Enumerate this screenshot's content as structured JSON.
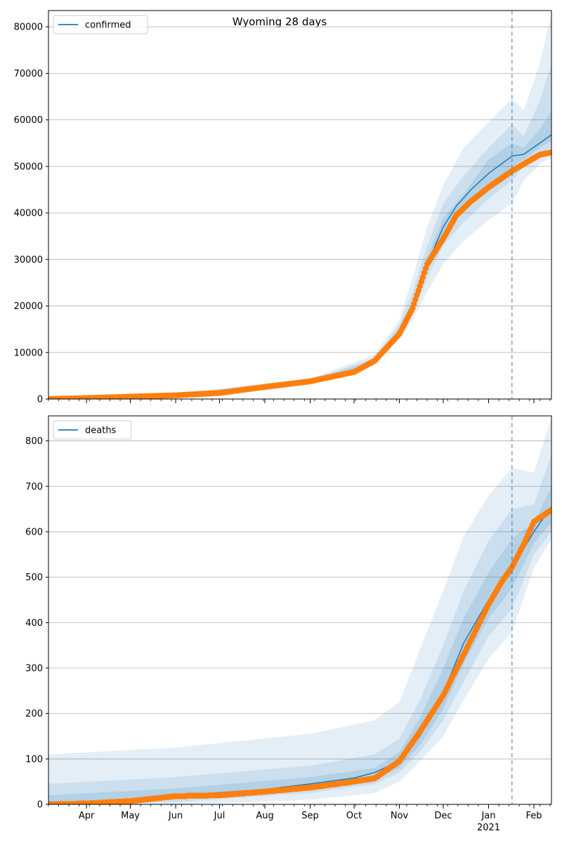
{
  "figure": {
    "title": "Wyoming 28 days"
  },
  "colors": {
    "model": "#1f77b4",
    "observed": "#ff7f0e",
    "grid": "#b0b0b0",
    "forecast_marker": "#1f77b4"
  },
  "chart_data": [
    {
      "type": "line",
      "title": "Wyoming 28 days",
      "legend": [
        "confirmed"
      ],
      "legend_position": "top-left",
      "grid": "horizontal",
      "xlabel": "",
      "ylabel": "",
      "xlim": [
        "2020-03-06",
        "2021-02-13"
      ],
      "ylim": [
        0,
        83500
      ],
      "yticks": [
        0,
        10000,
        20000,
        30000,
        40000,
        50000,
        60000,
        70000,
        80000
      ],
      "xticks": [
        {
          "date": "2020-04-01",
          "label": "Apr"
        },
        {
          "date": "2020-05-01",
          "label": "May"
        },
        {
          "date": "2020-06-01",
          "label": "Jun"
        },
        {
          "date": "2020-07-01",
          "label": "Jul"
        },
        {
          "date": "2020-08-01",
          "label": "Aug"
        },
        {
          "date": "2020-09-01",
          "label": "Sep"
        },
        {
          "date": "2020-10-01",
          "label": "Oct"
        },
        {
          "date": "2020-11-01",
          "label": "Nov"
        },
        {
          "date": "2020-12-01",
          "label": "Dec"
        },
        {
          "date": "2021-01-01",
          "label": "Jan",
          "sublabel": "2021"
        },
        {
          "date": "2021-02-01",
          "label": "Feb"
        }
      ],
      "forecast_start": "2021-01-17",
      "series": [
        {
          "name": "confirmed",
          "kind": "model-median",
          "x": [
            "2020-03-06",
            "2020-04-01",
            "2020-05-01",
            "2020-06-01",
            "2020-07-01",
            "2020-08-01",
            "2020-09-01",
            "2020-10-01",
            "2020-10-15",
            "2020-11-01",
            "2020-11-10",
            "2020-11-20",
            "2020-12-01",
            "2020-12-10",
            "2020-12-20",
            "2021-01-01",
            "2021-01-17",
            "2021-01-25",
            "2021-02-05",
            "2021-02-13"
          ],
          "y": [
            0,
            250,
            600,
            900,
            1400,
            2700,
            3900,
            5800,
            8000,
            14500,
            20000,
            29000,
            37000,
            41500,
            45000,
            48500,
            52200,
            52600,
            55000,
            56800
          ]
        },
        {
          "name": "observed",
          "kind": "observed-points",
          "x": [
            "2020-03-06",
            "2020-04-01",
            "2020-05-01",
            "2020-06-01",
            "2020-07-01",
            "2020-08-01",
            "2020-09-01",
            "2020-10-01",
            "2020-10-15",
            "2020-11-01",
            "2020-11-10",
            "2020-11-20",
            "2020-12-01",
            "2020-12-10",
            "2020-12-20",
            "2021-01-01",
            "2021-01-17",
            "2021-01-25",
            "2021-02-05",
            "2021-02-13"
          ],
          "y": [
            0,
            200,
            500,
            800,
            1300,
            2600,
            3800,
            5800,
            8200,
            14000,
            19500,
            29000,
            34500,
            39500,
            42500,
            45500,
            49000,
            50500,
            52500,
            53000
          ]
        }
      ],
      "bands": {
        "x": [
          "2020-03-06",
          "2020-06-01",
          "2020-09-01",
          "2020-10-15",
          "2020-11-01",
          "2020-11-10",
          "2020-11-20",
          "2020-12-01",
          "2020-12-15",
          "2021-01-01",
          "2021-01-17",
          "2021-01-25",
          "2021-02-05",
          "2021-02-13"
        ],
        "outer_low": [
          0,
          700,
          3600,
          7200,
          13000,
          17000,
          23000,
          29000,
          34000,
          38500,
          42000,
          47000,
          50500,
          52000
        ],
        "outer_high": [
          0,
          1200,
          4400,
          9500,
          17000,
          26000,
          37000,
          46000,
          54000,
          59500,
          64500,
          62000,
          72000,
          83000
        ],
        "mid_low": [
          0,
          800,
          3700,
          7600,
          13600,
          18500,
          26000,
          33000,
          38000,
          43000,
          47000,
          50000,
          52500,
          54000
        ],
        "mid_high": [
          0,
          1050,
          4200,
          8800,
          16000,
          23000,
          33000,
          42000,
          48000,
          54000,
          59000,
          56500,
          64000,
          72000
        ],
        "inner_low": [
          0,
          850,
          3800,
          7800,
          14000,
          19200,
          27500,
          35000,
          40500,
          45500,
          50000,
          51500,
          54000,
          55500
        ],
        "inner_high": [
          0,
          980,
          4000,
          8300,
          15200,
          21000,
          30500,
          39000,
          44000,
          51500,
          55000,
          54000,
          58000,
          62000
        ]
      }
    },
    {
      "type": "line",
      "title": "",
      "legend": [
        "deaths"
      ],
      "legend_position": "top-left",
      "grid": "horizontal",
      "xlabel": "",
      "ylabel": "",
      "xlim": [
        "2020-03-06",
        "2021-02-13"
      ],
      "ylim": [
        0,
        855
      ],
      "yticks": [
        0,
        100,
        200,
        300,
        400,
        500,
        600,
        700,
        800
      ],
      "xticks": [
        {
          "date": "2020-04-01",
          "label": "Apr"
        },
        {
          "date": "2020-05-01",
          "label": "May"
        },
        {
          "date": "2020-06-01",
          "label": "Jun"
        },
        {
          "date": "2020-07-01",
          "label": "Jul"
        },
        {
          "date": "2020-08-01",
          "label": "Aug"
        },
        {
          "date": "2020-09-01",
          "label": "Sep"
        },
        {
          "date": "2020-10-01",
          "label": "Oct"
        },
        {
          "date": "2020-11-01",
          "label": "Nov"
        },
        {
          "date": "2020-12-01",
          "label": "Dec"
        },
        {
          "date": "2021-01-01",
          "label": "Jan",
          "sublabel": "2021"
        },
        {
          "date": "2021-02-01",
          "label": "Feb"
        }
      ],
      "forecast_start": "2021-01-17",
      "series": [
        {
          "name": "deaths",
          "kind": "model-median",
          "x": [
            "2020-03-06",
            "2020-04-01",
            "2020-05-01",
            "2020-06-01",
            "2020-07-01",
            "2020-08-01",
            "2020-09-01",
            "2020-10-01",
            "2020-10-15",
            "2020-11-01",
            "2020-11-15",
            "2020-12-01",
            "2020-12-15",
            "2021-01-01",
            "2021-01-17",
            "2021-02-01",
            "2021-02-13"
          ],
          "y": [
            0,
            5,
            12,
            20,
            26,
            33,
            45,
            58,
            70,
            95,
            150,
            245,
            355,
            450,
            520,
            600,
            655
          ]
        },
        {
          "name": "observed",
          "kind": "observed-points",
          "x": [
            "2020-03-06",
            "2020-04-01",
            "2020-05-01",
            "2020-06-01",
            "2020-07-01",
            "2020-08-01",
            "2020-09-01",
            "2020-10-01",
            "2020-10-15",
            "2020-11-01",
            "2020-11-15",
            "2020-12-01",
            "2020-12-15",
            "2021-01-01",
            "2021-01-10",
            "2021-01-17",
            "2021-01-25",
            "2021-02-01",
            "2021-02-13"
          ],
          "y": [
            0,
            2,
            7,
            18,
            20,
            28,
            37,
            50,
            57,
            95,
            160,
            240,
            330,
            440,
            490,
            522,
            572,
            622,
            648
          ]
        }
      ],
      "bands": {
        "x": [
          "2020-03-06",
          "2020-06-01",
          "2020-09-01",
          "2020-10-15",
          "2020-11-01",
          "2020-11-15",
          "2020-12-01",
          "2020-12-15",
          "2021-01-01",
          "2021-01-17",
          "2021-02-01",
          "2021-02-13"
        ],
        "outer_low": [
          0,
          0,
          10,
          25,
          50,
          95,
          150,
          230,
          320,
          380,
          520,
          585
        ],
        "outer_high": [
          110,
          125,
          155,
          185,
          225,
          340,
          470,
          590,
          680,
          740,
          730,
          850
        ],
        "mid_low": [
          0,
          5,
          25,
          45,
          70,
          115,
          185,
          270,
          370,
          430,
          550,
          600
        ],
        "mid_high": [
          45,
          60,
          85,
          110,
          145,
          230,
          350,
          470,
          580,
          650,
          660,
          770
        ],
        "inner_low": [
          0,
          12,
          35,
          55,
          80,
          130,
          210,
          310,
          410,
          475,
          575,
          620
        ],
        "inner_high": [
          20,
          35,
          60,
          80,
          115,
          190,
          300,
          410,
          510,
          585,
          620,
          700
        ]
      }
    }
  ]
}
